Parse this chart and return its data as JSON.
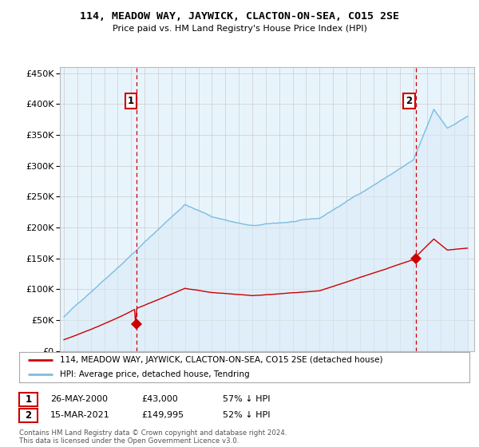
{
  "title": "114, MEADOW WAY, JAYWICK, CLACTON-ON-SEA, CO15 2SE",
  "subtitle": "Price paid vs. HM Land Registry's House Price Index (HPI)",
  "ylim": [
    0,
    450000
  ],
  "yticks": [
    0,
    50000,
    100000,
    150000,
    200000,
    250000,
    300000,
    350000,
    400000,
    450000
  ],
  "hpi_color": "#7bbde0",
  "hpi_fill_color": "#daeaf7",
  "sale_color": "#cc0000",
  "sale1_year": 2000.375,
  "sale2_year": 2021.167,
  "sale1_price": 43000,
  "sale2_price": 149995,
  "legend_label_sale": "114, MEADOW WAY, JAYWICK, CLACTON-ON-SEA, CO15 2SE (detached house)",
  "legend_label_hpi": "HPI: Average price, detached house, Tendring",
  "footer": "Contains HM Land Registry data © Crown copyright and database right 2024.\nThis data is licensed under the Open Government Licence v3.0.",
  "background_color": "#ffffff",
  "grid_color": "#cccccc",
  "xlim_left": 1994.7,
  "xlim_right": 2025.5
}
